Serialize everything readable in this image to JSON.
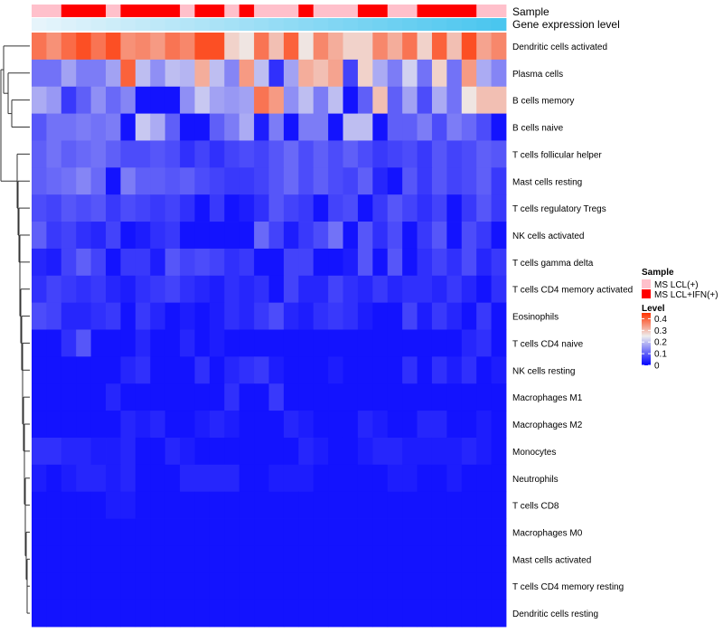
{
  "chart_data": {
    "type": "heatmap",
    "title": "",
    "annotation_rows": [
      {
        "name": "Sample",
        "label": "Sample"
      },
      {
        "name": "Gene expression level",
        "label": "Gene expression level"
      }
    ],
    "sample_groups": [
      "L",
      "L",
      "I",
      "I",
      "I",
      "L",
      "I",
      "I",
      "I",
      "I",
      "L",
      "I",
      "I",
      "L",
      "I",
      "L",
      "L",
      "L",
      "I",
      "L",
      "L",
      "L",
      "I",
      "I",
      "L",
      "L",
      "I",
      "I",
      "I",
      "I",
      "L",
      "L"
    ],
    "gene_expression_colors": {
      "low": "#e6f4fb",
      "high": "#4ac6ef"
    },
    "rows": [
      "Dendritic cells activated",
      "Plasma cells",
      "B cells memory",
      "B cells naive",
      "T cells follicular helper",
      "Mast cells resting",
      "T cells regulatory  Tregs",
      "NK cells activated",
      "T cells gamma delta",
      "T cells CD4 memory activated",
      "Eosinophils",
      "T cells CD4 naive",
      "NK cells resting",
      "Macrophages M1",
      "Macrophages M2",
      "Monocytes",
      "Neutrophils",
      "T cells CD8",
      "Macrophages M0",
      "Mast cells activated",
      "T cells CD4 memory resting",
      "Dendritic cells resting"
    ],
    "values": [
      [
        0.38,
        0.35,
        0.39,
        0.42,
        0.38,
        0.42,
        0.35,
        0.36,
        0.34,
        0.38,
        0.36,
        0.42,
        0.42,
        0.28,
        0.26,
        0.38,
        0.3,
        0.4,
        0.26,
        0.36,
        0.32,
        0.28,
        0.28,
        0.36,
        0.32,
        0.38,
        0.28,
        0.4,
        0.3,
        0.42,
        0.33,
        0.36
      ],
      [
        0.12,
        0.12,
        0.17,
        0.13,
        0.13,
        0.17,
        0.4,
        0.2,
        0.15,
        0.2,
        0.19,
        0.32,
        0.2,
        0.14,
        0.34,
        0.2,
        0.05,
        0.17,
        0.32,
        0.3,
        0.33,
        0.07,
        0.28,
        0.18,
        0.13,
        0.22,
        0.12,
        0.28,
        0.12,
        0.34,
        0.18,
        0.14
      ],
      [
        0.18,
        0.16,
        0.06,
        0.1,
        0.15,
        0.11,
        0.14,
        0.02,
        0.02,
        0.02,
        0.15,
        0.21,
        0.17,
        0.16,
        0.17,
        0.38,
        0.34,
        0.15,
        0.2,
        0.13,
        0.2,
        0.02,
        0.1,
        0.3,
        0.1,
        0.17,
        0.08,
        0.18,
        0.12,
        0.26,
        0.3,
        0.3
      ],
      [
        0.09,
        0.12,
        0.12,
        0.13,
        0.12,
        0.13,
        0.02,
        0.21,
        0.18,
        0.1,
        0.02,
        0.02,
        0.1,
        0.13,
        0.18,
        0.03,
        0.13,
        0.02,
        0.13,
        0.13,
        0.02,
        0.2,
        0.2,
        0.02,
        0.1,
        0.1,
        0.13,
        0.08,
        0.13,
        0.11,
        0.08,
        0.02
      ],
      [
        0.1,
        0.12,
        0.1,
        0.11,
        0.12,
        0.1,
        0.08,
        0.08,
        0.09,
        0.08,
        0.05,
        0.07,
        0.05,
        0.07,
        0.08,
        0.07,
        0.09,
        0.11,
        0.08,
        0.1,
        0.08,
        0.1,
        0.08,
        0.06,
        0.07,
        0.08,
        0.06,
        0.09,
        0.07,
        0.08,
        0.1,
        0.09
      ],
      [
        0.1,
        0.11,
        0.12,
        0.14,
        0.11,
        0.02,
        0.13,
        0.1,
        0.1,
        0.09,
        0.1,
        0.08,
        0.07,
        0.06,
        0.06,
        0.07,
        0.09,
        0.11,
        0.08,
        0.1,
        0.08,
        0.07,
        0.1,
        0.04,
        0.02,
        0.09,
        0.06,
        0.09,
        0.07,
        0.08,
        0.1,
        0.06
      ],
      [
        0.08,
        0.07,
        0.09,
        0.08,
        0.09,
        0.06,
        0.08,
        0.07,
        0.06,
        0.07,
        0.05,
        0.02,
        0.06,
        0.02,
        0.03,
        0.05,
        0.09,
        0.07,
        0.06,
        0.02,
        0.07,
        0.08,
        0.02,
        0.06,
        0.09,
        0.07,
        0.05,
        0.07,
        0.02,
        0.06,
        0.09,
        0.06
      ],
      [
        0.1,
        0.06,
        0.07,
        0.05,
        0.04,
        0.07,
        0.02,
        0.03,
        0.05,
        0.06,
        0.02,
        0.02,
        0.02,
        0.02,
        0.02,
        0.11,
        0.07,
        0.03,
        0.06,
        0.08,
        0.12,
        0.02,
        0.09,
        0.05,
        0.08,
        0.02,
        0.06,
        0.09,
        0.02,
        0.08,
        0.06,
        0.02
      ],
      [
        0.04,
        0.03,
        0.07,
        0.1,
        0.07,
        0.02,
        0.06,
        0.06,
        0.03,
        0.09,
        0.07,
        0.08,
        0.07,
        0.05,
        0.06,
        0.02,
        0.02,
        0.07,
        0.07,
        0.02,
        0.02,
        0.03,
        0.09,
        0.02,
        0.09,
        0.02,
        0.05,
        0.07,
        0.05,
        0.08,
        0.04,
        0.06
      ],
      [
        0.05,
        0.07,
        0.06,
        0.05,
        0.06,
        0.04,
        0.03,
        0.05,
        0.06,
        0.07,
        0.05,
        0.04,
        0.03,
        0.05,
        0.04,
        0.05,
        0.02,
        0.07,
        0.04,
        0.04,
        0.07,
        0.05,
        0.04,
        0.06,
        0.04,
        0.05,
        0.05,
        0.04,
        0.06,
        0.04,
        0.02,
        0.05
      ],
      [
        0.08,
        0.07,
        0.04,
        0.04,
        0.05,
        0.06,
        0.02,
        0.06,
        0.04,
        0.02,
        0.03,
        0.02,
        0.03,
        0.05,
        0.04,
        0.06,
        0.08,
        0.04,
        0.03,
        0.05,
        0.06,
        0.05,
        0.03,
        0.02,
        0.02,
        0.07,
        0.03,
        0.06,
        0.04,
        0.02,
        0.06,
        0.02
      ],
      [
        0.02,
        0.02,
        0.05,
        0.09,
        0.02,
        0.02,
        0.02,
        0.04,
        0.02,
        0.02,
        0.04,
        0.02,
        0.03,
        0.02,
        0.02,
        0.02,
        0.02,
        0.02,
        0.02,
        0.02,
        0.02,
        0.02,
        0.02,
        0.02,
        0.02,
        0.02,
        0.02,
        0.02,
        0.02,
        0.04,
        0.05,
        0.02
      ],
      [
        0.02,
        0.02,
        0.02,
        0.02,
        0.02,
        0.02,
        0.04,
        0.05,
        0.02,
        0.02,
        0.02,
        0.05,
        0.02,
        0.04,
        0.05,
        0.06,
        0.03,
        0.02,
        0.02,
        0.02,
        0.03,
        0.02,
        0.02,
        0.02,
        0.02,
        0.05,
        0.02,
        0.05,
        0.03,
        0.05,
        0.02,
        0.03
      ],
      [
        0.02,
        0.02,
        0.02,
        0.02,
        0.02,
        0.04,
        0.02,
        0.02,
        0.02,
        0.02,
        0.02,
        0.02,
        0.02,
        0.05,
        0.02,
        0.02,
        0.06,
        0.02,
        0.02,
        0.02,
        0.02,
        0.02,
        0.02,
        0.02,
        0.02,
        0.02,
        0.02,
        0.02,
        0.02,
        0.02,
        0.02,
        0.02
      ],
      [
        0.02,
        0.02,
        0.02,
        0.02,
        0.02,
        0.02,
        0.04,
        0.03,
        0.04,
        0.02,
        0.02,
        0.03,
        0.04,
        0.03,
        0.02,
        0.02,
        0.02,
        0.04,
        0.03,
        0.02,
        0.02,
        0.02,
        0.04,
        0.03,
        0.02,
        0.02,
        0.04,
        0.04,
        0.02,
        0.02,
        0.03,
        0.02
      ],
      [
        0.05,
        0.05,
        0.04,
        0.04,
        0.03,
        0.03,
        0.04,
        0.02,
        0.02,
        0.04,
        0.03,
        0.02,
        0.02,
        0.02,
        0.02,
        0.02,
        0.02,
        0.02,
        0.04,
        0.03,
        0.02,
        0.02,
        0.03,
        0.04,
        0.04,
        0.03,
        0.03,
        0.03,
        0.03,
        0.04,
        0.03,
        0.02
      ],
      [
        0.03,
        0.02,
        0.03,
        0.04,
        0.04,
        0.03,
        0.04,
        0.02,
        0.02,
        0.02,
        0.04,
        0.04,
        0.04,
        0.04,
        0.02,
        0.02,
        0.03,
        0.03,
        0.03,
        0.02,
        0.02,
        0.02,
        0.02,
        0.02,
        0.03,
        0.03,
        0.02,
        0.02,
        0.03,
        0.02,
        0.02,
        0.02
      ],
      [
        0.02,
        0.02,
        0.02,
        0.02,
        0.02,
        0.03,
        0.03,
        0.02,
        0.02,
        0.02,
        0.02,
        0.02,
        0.02,
        0.02,
        0.02,
        0.02,
        0.02,
        0.02,
        0.02,
        0.02,
        0.02,
        0.02,
        0.02,
        0.02,
        0.02,
        0.02,
        0.02,
        0.02,
        0.02,
        0.02,
        0.02,
        0.02
      ],
      [
        0.02,
        0.02,
        0.02,
        0.02,
        0.02,
        0.02,
        0.02,
        0.02,
        0.02,
        0.02,
        0.02,
        0.02,
        0.02,
        0.02,
        0.02,
        0.02,
        0.02,
        0.02,
        0.02,
        0.02,
        0.02,
        0.02,
        0.02,
        0.02,
        0.02,
        0.02,
        0.02,
        0.02,
        0.02,
        0.02,
        0.02,
        0.02
      ],
      [
        0.02,
        0.02,
        0.02,
        0.02,
        0.02,
        0.02,
        0.02,
        0.02,
        0.02,
        0.02,
        0.02,
        0.02,
        0.02,
        0.02,
        0.02,
        0.02,
        0.02,
        0.02,
        0.02,
        0.02,
        0.02,
        0.02,
        0.02,
        0.02,
        0.02,
        0.02,
        0.02,
        0.02,
        0.02,
        0.02,
        0.02,
        0.02
      ],
      [
        0.02,
        0.02,
        0.02,
        0.02,
        0.02,
        0.02,
        0.02,
        0.02,
        0.02,
        0.02,
        0.02,
        0.02,
        0.02,
        0.02,
        0.02,
        0.02,
        0.02,
        0.02,
        0.02,
        0.02,
        0.02,
        0.02,
        0.02,
        0.02,
        0.02,
        0.02,
        0.02,
        0.02,
        0.02,
        0.02,
        0.02,
        0.02
      ],
      [
        0.02,
        0.02,
        0.02,
        0.02,
        0.02,
        0.02,
        0.02,
        0.02,
        0.02,
        0.02,
        0.02,
        0.02,
        0.02,
        0.02,
        0.02,
        0.02,
        0.02,
        0.02,
        0.02,
        0.02,
        0.02,
        0.02,
        0.02,
        0.02,
        0.02,
        0.02,
        0.02,
        0.02,
        0.02,
        0.02,
        0.02,
        0.02
      ]
    ],
    "color_scale": {
      "low": "#0000ff",
      "mid": "#eeeeee",
      "high": "#ff3300",
      "midpoint": 0.25,
      "max": 0.45
    },
    "legends": {
      "sample": {
        "title": "Sample",
        "entries": [
          {
            "key": "L",
            "label": "MS LCL(+)",
            "color": "#ffc0cb"
          },
          {
            "key": "I",
            "label": "MS LCL+IFN(+)",
            "color": "#ff0000"
          }
        ]
      },
      "level": {
        "title": "Level",
        "ticks": [
          {
            "value": 0.4,
            "label": "0.4"
          },
          {
            "value": 0.3,
            "label": "0.3"
          },
          {
            "value": 0.2,
            "label": "0.2"
          },
          {
            "value": 0.1,
            "label": "0.1"
          },
          {
            "value": 0,
            "label": "0"
          }
        ],
        "range": [
          0,
          0.45
        ]
      }
    },
    "dendrogram": "row",
    "grid": false
  }
}
